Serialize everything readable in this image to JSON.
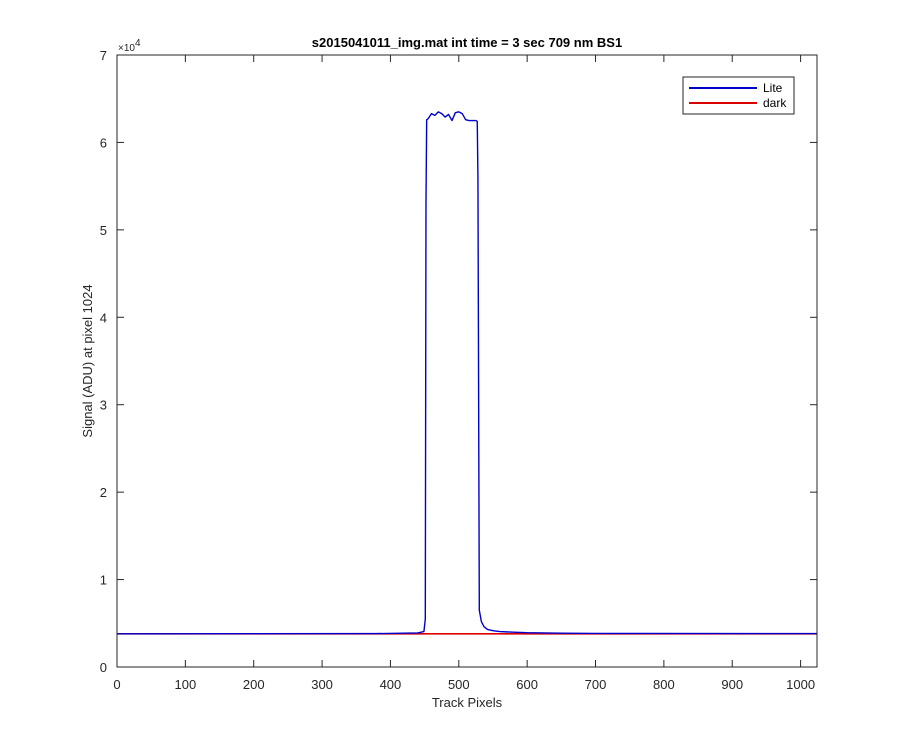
{
  "chart_data": {
    "type": "line",
    "title": "s2015041011_img.mat int time = 3 sec  709 nm BS1",
    "xlabel": "Track Pixels",
    "ylabel": "Signal (ADU) at pixel 1024",
    "xlim": [
      0,
      1024
    ],
    "ylim": [
      0,
      70000
    ],
    "x_ticks": [
      0,
      100,
      200,
      300,
      400,
      500,
      600,
      700,
      800,
      900,
      1000
    ],
    "x_tick_labels": [
      "0",
      "100",
      "200",
      "300",
      "400",
      "500",
      "600",
      "700",
      "800",
      "900",
      "1000"
    ],
    "y_ticks": [
      0,
      10000,
      20000,
      30000,
      40000,
      50000,
      60000,
      70000
    ],
    "y_tick_labels": [
      "0",
      "1",
      "2",
      "3",
      "4",
      "5",
      "6",
      "7"
    ],
    "y_exponent_base": "×10",
    "y_exponent_power": "4",
    "grid": false,
    "legend_position": "top-right",
    "series": [
      {
        "name": "Lite",
        "color": "#0000cc",
        "x": [
          0,
          380,
          440,
          449,
          451,
          452,
          453,
          455,
          460,
          465,
          470,
          475,
          480,
          485,
          490,
          495,
          500,
          505,
          510,
          515,
          520,
          525,
          527,
          528,
          530,
          533,
          537,
          542,
          550,
          560,
          580,
          600,
          650,
          700,
          1024
        ],
        "y": [
          3800,
          3820,
          3900,
          4050,
          5500,
          53000,
          62600,
          62700,
          63300,
          63100,
          63500,
          63300,
          62900,
          63200,
          62500,
          63400,
          63500,
          63300,
          62600,
          62500,
          62500,
          62500,
          62400,
          56000,
          6500,
          5200,
          4600,
          4300,
          4150,
          4050,
          3980,
          3920,
          3870,
          3840,
          3820
        ]
      },
      {
        "name": "dark",
        "color": "#dd0000",
        "x": [
          0,
          1024
        ],
        "y": [
          3800,
          3800
        ]
      }
    ]
  }
}
